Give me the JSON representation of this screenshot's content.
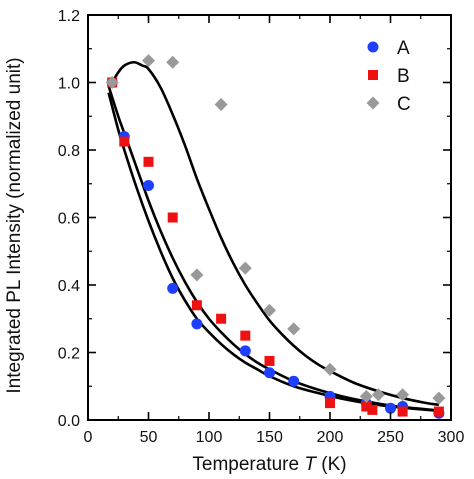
{
  "chart_data": {
    "type": "scatter",
    "xlabel": {
      "prefix": "Temperature ",
      "var": "T",
      "suffix": " (K)"
    },
    "ylabel": "Integrated PL Intensity (normalized unit)",
    "xlim": [
      0,
      300
    ],
    "ylim": [
      0,
      1.2
    ],
    "xticks": [
      0,
      50,
      100,
      150,
      200,
      250,
      300
    ],
    "yticks": [
      0.0,
      0.2,
      0.4,
      0.6,
      0.8,
      1.0,
      1.2
    ],
    "grid": false,
    "legend_position": "top-right",
    "series": [
      {
        "name": "A",
        "color": "#1f3fff",
        "marker": "circle",
        "points": [
          [
            20,
            1.0
          ],
          [
            30,
            0.84
          ],
          [
            50,
            0.695
          ],
          [
            70,
            0.39
          ],
          [
            90,
            0.285
          ],
          [
            130,
            0.205
          ],
          [
            150,
            0.14
          ],
          [
            170,
            0.115
          ],
          [
            200,
            0.07
          ],
          [
            230,
            0.05
          ],
          [
            250,
            0.035
          ],
          [
            260,
            0.04
          ],
          [
            290,
            0.02
          ]
        ]
      },
      {
        "name": "B",
        "color": "#ee1111",
        "marker": "square",
        "points": [
          [
            20,
            1.0
          ],
          [
            30,
            0.825
          ],
          [
            50,
            0.765
          ],
          [
            70,
            0.6
          ],
          [
            90,
            0.34
          ],
          [
            110,
            0.3
          ],
          [
            130,
            0.25
          ],
          [
            150,
            0.175
          ],
          [
            200,
            0.05
          ],
          [
            230,
            0.04
          ],
          [
            235,
            0.03
          ],
          [
            260,
            0.025
          ],
          [
            290,
            0.025
          ]
        ]
      },
      {
        "name": "C",
        "color": "#999999",
        "marker": "diamond",
        "points": [
          [
            20,
            1.0
          ],
          [
            50,
            1.065
          ],
          [
            70,
            1.06
          ],
          [
            90,
            0.43
          ],
          [
            110,
            0.935
          ],
          [
            130,
            0.45
          ],
          [
            150,
            0.325
          ],
          [
            170,
            0.27
          ],
          [
            200,
            0.15
          ],
          [
            230,
            0.07
          ],
          [
            240,
            0.075
          ],
          [
            260,
            0.075
          ],
          [
            290,
            0.065
          ]
        ]
      }
    ],
    "fit_curves": [
      [
        [
          17,
          0.97
        ],
        [
          25,
          0.86
        ],
        [
          30,
          0.8
        ],
        [
          40,
          0.69
        ],
        [
          50,
          0.59
        ],
        [
          60,
          0.5
        ],
        [
          70,
          0.42
        ],
        [
          80,
          0.355
        ],
        [
          90,
          0.3
        ],
        [
          100,
          0.26
        ],
        [
          110,
          0.225
        ],
        [
          120,
          0.195
        ],
        [
          130,
          0.17
        ],
        [
          140,
          0.15
        ],
        [
          150,
          0.13
        ],
        [
          170,
          0.1
        ],
        [
          190,
          0.08
        ],
        [
          210,
          0.063
        ],
        [
          230,
          0.05
        ],
        [
          250,
          0.04
        ],
        [
          270,
          0.033
        ],
        [
          290,
          0.027
        ]
      ],
      [
        [
          17,
          0.99
        ],
        [
          25,
          0.9
        ],
        [
          30,
          0.85
        ],
        [
          40,
          0.75
        ],
        [
          50,
          0.65
        ],
        [
          60,
          0.56
        ],
        [
          70,
          0.48
        ],
        [
          80,
          0.41
        ],
        [
          90,
          0.35
        ],
        [
          100,
          0.3
        ],
        [
          110,
          0.26
        ],
        [
          120,
          0.225
        ],
        [
          130,
          0.195
        ],
        [
          140,
          0.17
        ],
        [
          150,
          0.15
        ],
        [
          170,
          0.115
        ],
        [
          190,
          0.09
        ],
        [
          210,
          0.07
        ],
        [
          230,
          0.055
        ],
        [
          250,
          0.043
        ],
        [
          270,
          0.035
        ],
        [
          290,
          0.028
        ]
      ],
      [
        [
          20,
          1.0
        ],
        [
          25,
          1.03
        ],
        [
          30,
          1.05
        ],
        [
          38,
          1.06
        ],
        [
          45,
          1.05
        ],
        [
          50,
          1.04
        ],
        [
          60,
          0.985
        ],
        [
          70,
          0.905
        ],
        [
          80,
          0.815
        ],
        [
          90,
          0.715
        ],
        [
          100,
          0.625
        ],
        [
          110,
          0.54
        ],
        [
          120,
          0.465
        ],
        [
          130,
          0.4
        ],
        [
          140,
          0.345
        ],
        [
          150,
          0.295
        ],
        [
          160,
          0.255
        ],
        [
          170,
          0.22
        ],
        [
          180,
          0.19
        ],
        [
          190,
          0.165
        ],
        [
          200,
          0.145
        ],
        [
          220,
          0.11
        ],
        [
          240,
          0.085
        ],
        [
          260,
          0.065
        ],
        [
          280,
          0.05
        ],
        [
          290,
          0.045
        ]
      ]
    ]
  }
}
